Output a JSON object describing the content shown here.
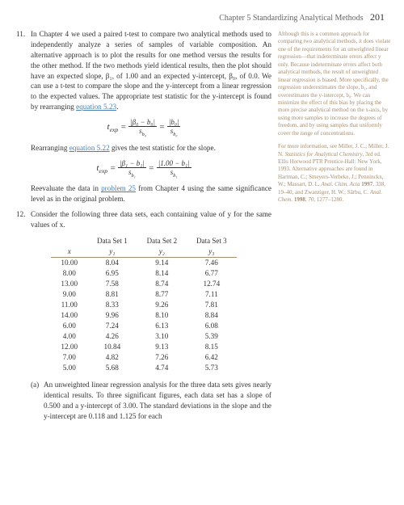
{
  "header": {
    "chapter": "Chapter 5 Standardizing Analytical Methods",
    "page": "201"
  },
  "item11": {
    "number": "11.",
    "body": "In Chapter 4 we used a paired t-test to compare two analytical methods used to independently analyze a series of samples of variable composition. An alternative approach is to plot the results for one method versus the results for the other method. If the two methods yield identical results, then the plot should have an expected slope, β₁, of 1.00 and an expected y-intercept, β₀, of 0.0. We can use a t-test to compare the slope and the y-intercept from a linear regression to the expected values. The appropriate test statistic for the y-intercept is found by rearranging ",
    "link1": "equation 5.23",
    "body_end": ".",
    "formula1_lhs": "t",
    "formula1_sub": "exp",
    "formula1_eq": " = ",
    "formula1_top1": "|β₀ − b₀|",
    "formula1_bot1": "s",
    "formula1_bot1_sub": "b₀",
    "formula1_top2": "|b₀|",
    "formula1_bot2": "s",
    "formula1_bot2_sub": "b₀",
    "between1a": "Rearranging ",
    "link2": "equation 5.22",
    "between1b": " gives the test statistic for the slope.",
    "formula2_top1": "|β₁ − b₁|",
    "formula2_bot1": "s",
    "formula2_bot1_sub": "b₁",
    "formula2_top2": "|1.00 − b₁|",
    "formula2_bot2": "s",
    "formula2_bot2_sub": "b₁",
    "between2a": "Reevaluate the data in ",
    "link3": "problem 25",
    "between2b": " from Chapter 4 using the same significance level as in the original problem."
  },
  "item12": {
    "number": "12.",
    "body": "Consider the following three data sets, each containing value of y for the same values of x.",
    "table": {
      "set_headers": [
        "",
        "Data Set 1",
        "Data Set 2",
        "Data Set 3"
      ],
      "col_headers": [
        "x",
        "y₁",
        "y₂",
        "y₃"
      ],
      "rows": [
        [
          "10.00",
          "8.04",
          "9.14",
          "7.46"
        ],
        [
          "8.00",
          "6.95",
          "8.14",
          "6.77"
        ],
        [
          "13.00",
          "7.58",
          "8.74",
          "12.74"
        ],
        [
          "9.00",
          "8.81",
          "8.77",
          "7.11"
        ],
        [
          "11.00",
          "8.33",
          "9.26",
          "7.81"
        ],
        [
          "14.00",
          "9.96",
          "8.10",
          "8.84"
        ],
        [
          "6.00",
          "7.24",
          "6.13",
          "6.08"
        ],
        [
          "4.00",
          "4.26",
          "3.10",
          "5.39"
        ],
        [
          "12.00",
          "10.84",
          "9.13",
          "8.15"
        ],
        [
          "7.00",
          "4.82",
          "7.26",
          "6.42"
        ],
        [
          "5.00",
          "5.68",
          "4.74",
          "5.73"
        ]
      ]
    },
    "sub_a": {
      "label": "(a)",
      "body": "An unweighted linear regression analysis for the three data sets gives nearly identical results. To three significant figures, each data set has a slope of 0.500 and a y-intercept of 3.00. The standard deviations in the slope and the y-intercept are 0.118 and 1.125 for each"
    }
  },
  "sidebar": {
    "para1": "Although this is a common approach for comparing two analytical methods, it does violate one of the requirements for an unweighted linear regression—that indeterminate errors affect y only. Because indeterminate errors affect both analytical methods, the result of unweighted linear regression is biased. More specifically, the regression underestimates the slope, b₁, and overestimates the y-intercept, b₀. We can minimize the effect of this bias by placing the more precise analytical method on the x-axis, by using more samples to increase the degrees of freedom, and by using samples that uniformly cover the range of concentrations.",
    "para2a": "For more information, see Miller, J. C.; Miller, J. N. ",
    "para2_title": "Statistics for Analytical Chemistry",
    "para2b": ", 3rd ed. Ellis Horwood PTR Prentice-Hall: New York, 1993. Alternative approaches are found in Hartman, C.; Smeyers-Verbeke, J.; Penninckx, W.; Massart, D. L. ",
    "para2_j1": "Anal. Chim. Acta",
    "para2c": " ",
    "para2_y1": "1997",
    "para2d": ", ",
    "para2_v1": "338",
    "para2e": ", 19–40, and Zwanziger, H. W.; Sârbu, C. ",
    "para2_j2": "Anal. Chem.",
    "para2f": " ",
    "para2_y2": "1998",
    "para2g": ", ",
    "para2_v2": "70",
    "para2h": ", 1277–1280."
  }
}
